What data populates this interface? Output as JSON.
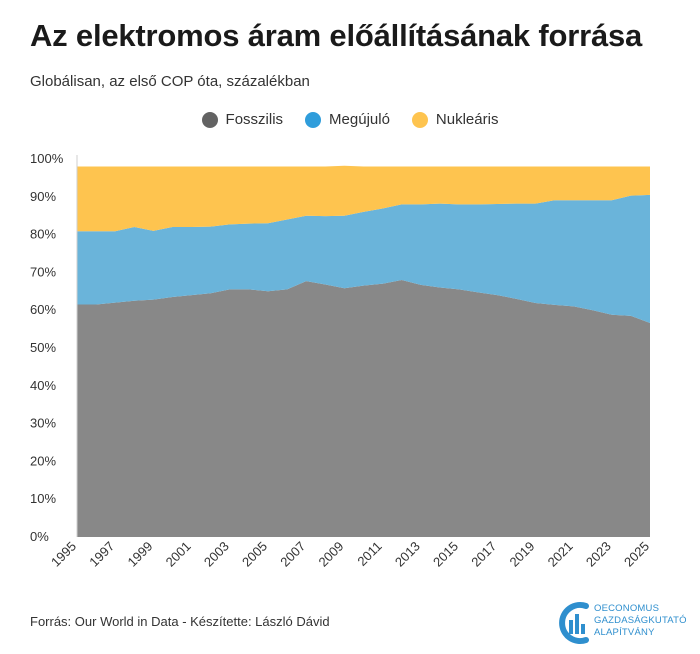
{
  "header": {
    "title": "Az elektromos áram előállításának forrása",
    "subtitle": "Globálisan, az első COP óta, százalékban"
  },
  "footer": {
    "source": "Forrás: Our World in Data - Készítette: László Dávid"
  },
  "logo": {
    "line1": "OECONOMUS",
    "line2": "GAZDASÁGKUTATÓ",
    "line3": "ALAPÍTVÁNY"
  },
  "colors": {
    "fossil": "#888888",
    "renewable": "#6ab4da",
    "nuclear": "#fec44f",
    "logo": "#2f8fce"
  },
  "chart_data": {
    "type": "area",
    "stacked": true,
    "legend_position": "top-center",
    "grid": false,
    "x": [
      1995,
      1996,
      1997,
      1998,
      1999,
      2000,
      2001,
      2002,
      2003,
      2004,
      2005,
      2006,
      2007,
      2008,
      2009,
      2010,
      2011,
      2012,
      2013,
      2014,
      2015,
      2016,
      2017,
      2018,
      2019,
      2020,
      2021,
      2022,
      2023,
      2024,
      2025
    ],
    "xticks": [
      "1995",
      "1997",
      "1999",
      "2001",
      "2003",
      "2005",
      "2007",
      "2009",
      "2011",
      "2013",
      "2015",
      "2017",
      "2019",
      "2021",
      "2023",
      "2025"
    ],
    "yticks": [
      "0%",
      "10%",
      "20%",
      "30%",
      "40%",
      "50%",
      "60%",
      "70%",
      "80%",
      "90%",
      "100%"
    ],
    "ylim": [
      0,
      100
    ],
    "series": [
      {
        "name": "Fosszilis",
        "color": "#888888",
        "values": [
          61.5,
          61.5,
          62,
          62.5,
          62.8,
          63.5,
          64,
          64.5,
          65.5,
          65.5,
          65,
          65.5,
          67.7,
          66.8,
          65.8,
          66.5,
          67,
          68,
          66.7,
          66,
          65.5,
          64.7,
          64,
          63,
          61.9,
          61.4,
          61,
          60,
          58.8,
          58.5,
          56.6
        ]
      },
      {
        "name": "Megújuló",
        "color": "#6ab4da",
        "values": [
          19.4,
          19.4,
          18.9,
          19.5,
          18.2,
          18.5,
          18,
          17.6,
          17.2,
          17.4,
          18,
          18.5,
          17.3,
          18.1,
          19.2,
          19.5,
          19.9,
          20,
          21.3,
          22.2,
          22.5,
          23.3,
          24.1,
          25.2,
          26.3,
          27.7,
          28.1,
          29.1,
          30.3,
          31.8,
          33.9
        ]
      },
      {
        "name": "Nukleáris",
        "color": "#fec44f",
        "values": [
          17.1,
          17.1,
          17.1,
          16,
          17,
          16,
          16,
          15.9,
          15.3,
          15.1,
          15,
          14,
          13,
          13.1,
          13.2,
          12,
          11.1,
          10,
          10,
          9.8,
          10,
          10,
          9.9,
          9.8,
          9.8,
          8.9,
          8.9,
          8.9,
          8.9,
          7.7,
          7.5
        ]
      }
    ]
  }
}
